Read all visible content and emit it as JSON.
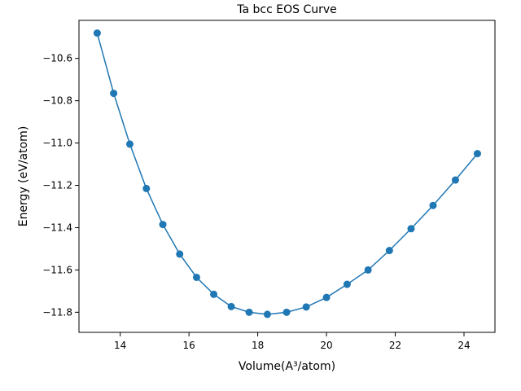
{
  "chart_data": {
    "type": "line",
    "title": "Ta bcc EOS Curve",
    "xlabel": "Volume(A³/atom)",
    "ylabel": "Energy (eV/atom)",
    "xlim": [
      12.8,
      24.9
    ],
    "ylim": [
      -11.895,
      -10.42
    ],
    "xticks": [
      14,
      16,
      18,
      20,
      22,
      24
    ],
    "yticks": [
      -11.8,
      -11.6,
      -11.4,
      -11.2,
      -11.0,
      -10.8,
      -10.6
    ],
    "xtick_labels": [
      "14",
      "16",
      "18",
      "20",
      "22",
      "24"
    ],
    "ytick_labels": [
      "−11.8",
      "−11.6",
      "−11.4",
      "−11.2",
      "−11.0",
      "−10.8",
      "−10.6"
    ],
    "grid": false,
    "series": [
      {
        "color": "#1f77b4",
        "marker": "circle",
        "x": [
          13.33,
          13.81,
          14.28,
          14.76,
          15.24,
          15.73,
          16.22,
          16.72,
          17.23,
          17.75,
          18.28,
          18.84,
          19.41,
          20.0,
          20.6,
          21.21,
          21.83,
          22.46,
          23.1,
          23.75,
          24.39
        ],
        "y": [
          -10.48,
          -10.765,
          -11.005,
          -11.215,
          -11.385,
          -11.525,
          -11.635,
          -11.715,
          -11.773,
          -11.8,
          -11.81,
          -11.8,
          -11.775,
          -11.73,
          -11.668,
          -11.6,
          -11.508,
          -11.405,
          -11.295,
          -11.175,
          -11.05
        ]
      }
    ]
  }
}
